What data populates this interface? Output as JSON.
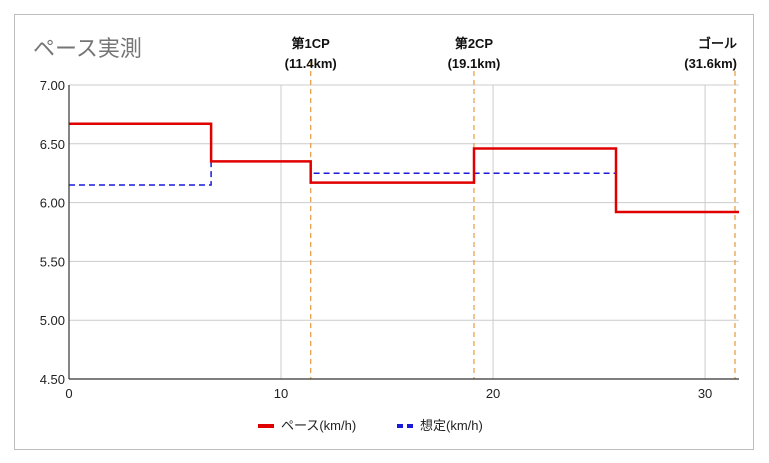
{
  "chart_data": {
    "type": "line",
    "title": "ペース実測",
    "xlim": [
      0,
      31.6
    ],
    "ylim": [
      4.5,
      7.0
    ],
    "x_ticks": [
      "0",
      "10",
      "20",
      "30"
    ],
    "y_ticks": [
      "7.00",
      "6.50",
      "6.00",
      "5.50",
      "5.00",
      "4.50"
    ],
    "grid": true,
    "legend_position": "bottom",
    "checkpoints": [
      {
        "name": "第1CP",
        "detail": "(11.4km)",
        "x": 11.4
      },
      {
        "name": "第2CP",
        "detail": "(19.1km)",
        "x": 19.1
      },
      {
        "name": "ゴール",
        "detail": "(31.6km)",
        "x": 31.6
      }
    ],
    "series": [
      {
        "name": "ペース(km/h)",
        "color": "#e00000",
        "style": "solid",
        "step": true,
        "points": [
          [
            0,
            6.67
          ],
          [
            6.7,
            6.67
          ],
          [
            6.7,
            6.35
          ],
          [
            11.4,
            6.35
          ],
          [
            11.4,
            6.17
          ],
          [
            19.1,
            6.17
          ],
          [
            19.1,
            6.46
          ],
          [
            25.8,
            6.46
          ],
          [
            25.8,
            5.92
          ],
          [
            31.6,
            5.92
          ]
        ]
      },
      {
        "name": "想定(km/h)",
        "color": "#1a1adb",
        "style": "dashed",
        "step": true,
        "points": [
          [
            0,
            6.15
          ],
          [
            6.7,
            6.15
          ],
          [
            6.7,
            6.35
          ],
          [
            11.4,
            6.35
          ],
          [
            11.4,
            6.25
          ],
          [
            25.8,
            6.25
          ],
          [
            25.8,
            5.92
          ],
          [
            31.6,
            5.92
          ]
        ]
      }
    ]
  },
  "colors": {
    "grid": "#cccccc",
    "axis": "#333333",
    "checkpoint_line": "#e69a3c"
  }
}
